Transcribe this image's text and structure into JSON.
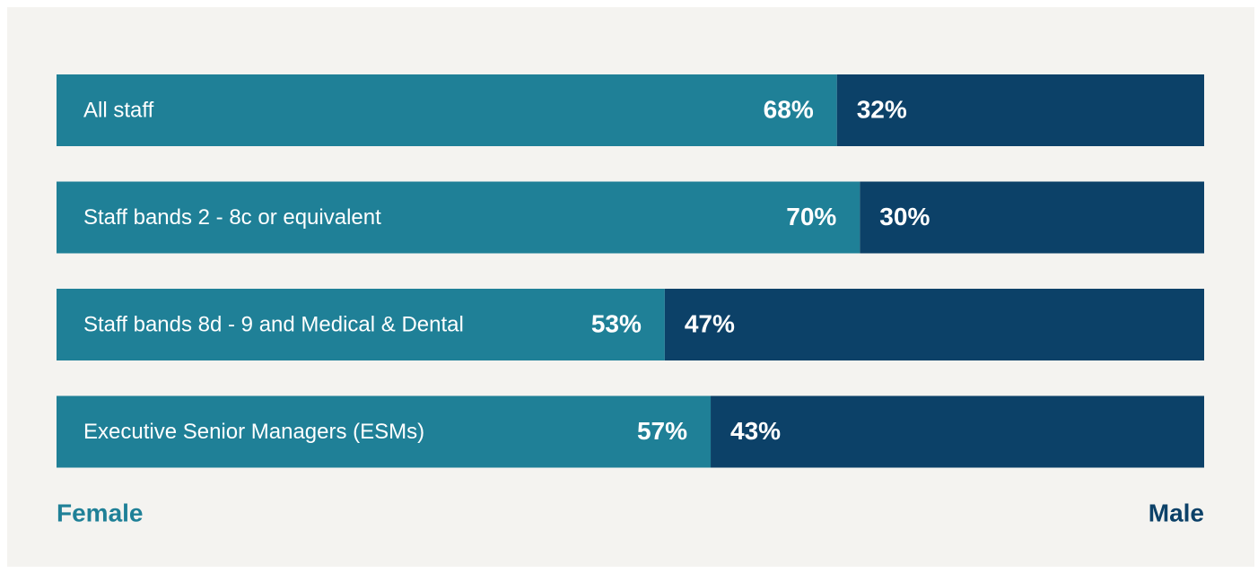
{
  "chart_data": {
    "type": "stacked-bar-horizontal",
    "categories": [
      "All staff",
      "Staff bands 2 - 8c or equivalent",
      "Staff bands 8d - 9 and Medical & Dental",
      "Executive Senior Managers (ESMs)"
    ],
    "series": [
      {
        "name": "Female",
        "color": "#1f8097",
        "values": [
          68,
          70,
          53,
          57
        ],
        "value_labels": [
          "68%",
          "70%",
          "53%",
          "57%"
        ]
      },
      {
        "name": "Male",
        "color": "#0c4168",
        "values": [
          32,
          30,
          47,
          43
        ],
        "value_labels": [
          "32%",
          "30%",
          "47%",
          "43%"
        ]
      }
    ],
    "xlim": [
      0,
      100
    ]
  }
}
